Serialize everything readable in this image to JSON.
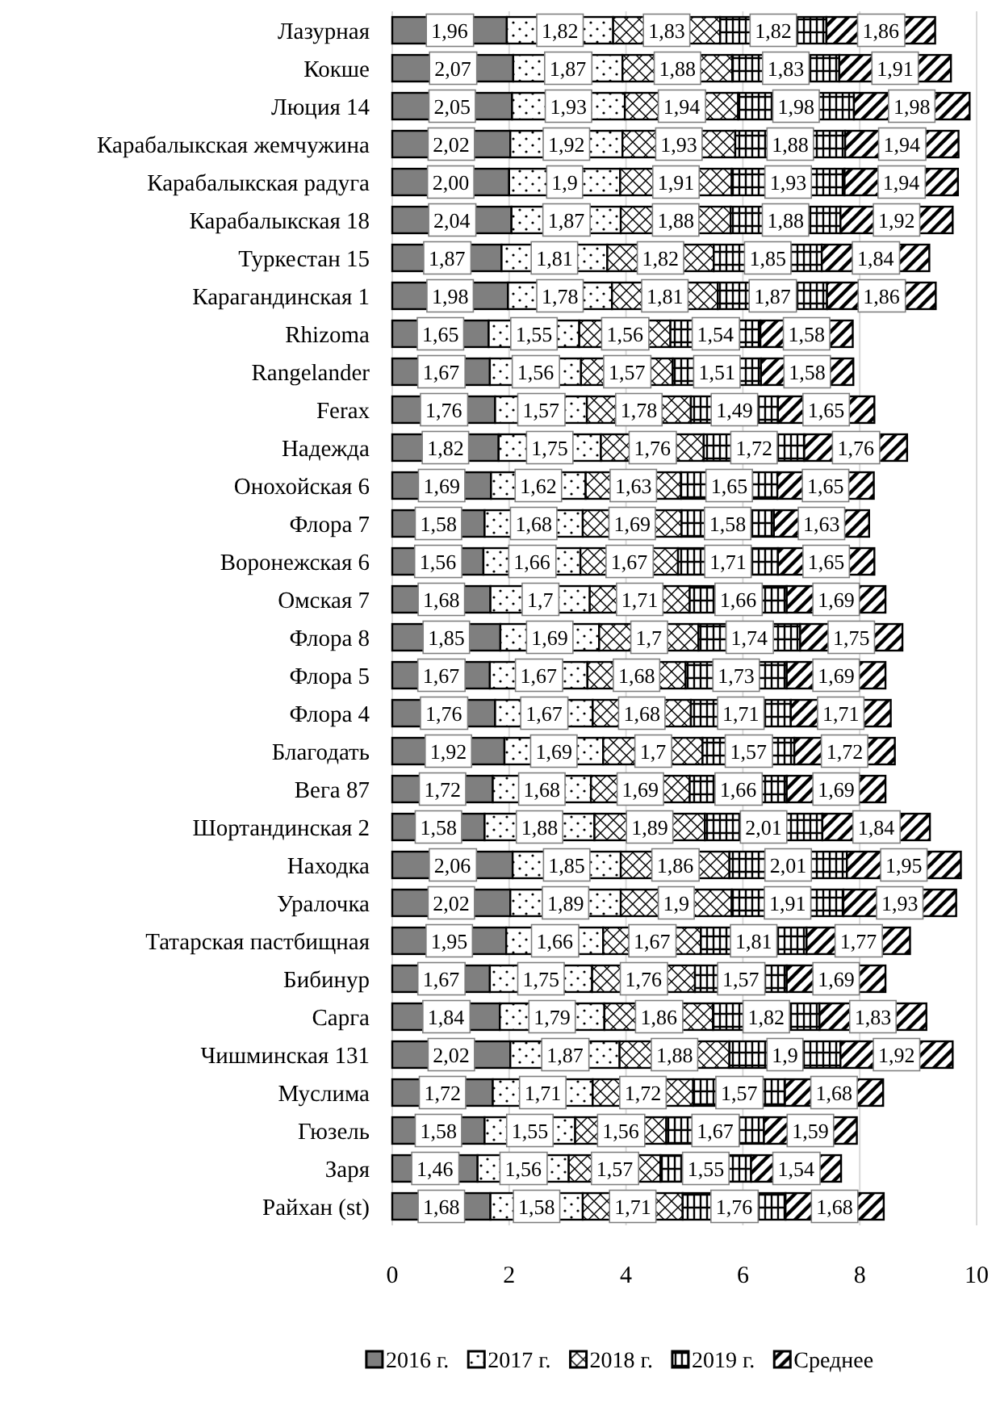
{
  "chart_data": {
    "type": "bar",
    "orientation": "horizontal",
    "stacked": true,
    "grid": "x",
    "legend": "bottom",
    "categories": [
      "Лазурная",
      "Кокше",
      "Люция 14",
      "Карабалыкская жемчужина",
      "Карабалыкская радуга",
      "Карабалыкская 18",
      "Туркестан 15",
      "Карагандинская 1",
      "Rhizoma",
      "Rangelander",
      "Ferax",
      "Надежда",
      "Онохойская 6",
      "Флора 7",
      "Воронежская 6",
      "Омская 7",
      "Флора 8",
      "Флора 5",
      "Флора 4",
      "Благодать",
      "Вега 87",
      "Шортандинская 2",
      "Находка",
      "Уралочка",
      "Татарская пастбищная",
      "Бибинур",
      "Сарга",
      "Чишминская 131",
      "Муслима",
      "Гюзель",
      "Заря",
      "Райхан (st)"
    ],
    "xlim": [
      0,
      10
    ],
    "xticks": [
      0,
      2,
      4,
      6,
      8,
      10
    ],
    "series": [
      {
        "name": "2016 г.",
        "color": "#7f7f7f",
        "values": [
          1.96,
          2.07,
          2.05,
          2.02,
          2.0,
          2.04,
          1.87,
          1.98,
          1.65,
          1.67,
          1.76,
          1.82,
          1.69,
          1.58,
          1.56,
          1.68,
          1.85,
          1.67,
          1.76,
          1.92,
          1.72,
          1.58,
          2.06,
          2.02,
          1.95,
          1.67,
          1.84,
          2.02,
          1.72,
          1.58,
          1.46,
          1.68
        ],
        "value_labels": [
          "1,96",
          "2,07",
          "2,05",
          "2,02",
          "2,00",
          "2,04",
          "1,87",
          "1,98",
          "1,65",
          "1,67",
          "1,76",
          "1,82",
          "1,69",
          "1,58",
          "1,56",
          "1,68",
          "1,85",
          "1,67",
          "1,76",
          "1,92",
          "1,72",
          "1,58",
          "2,06",
          "2,02",
          "1,95",
          "1,67",
          "1,84",
          "2,02",
          "1,72",
          "1,58",
          "1,46",
          "1,68"
        ]
      },
      {
        "name": "2017 г.",
        "color": "#000000",
        "values": [
          1.82,
          1.87,
          1.93,
          1.92,
          1.9,
          1.87,
          1.81,
          1.78,
          1.55,
          1.56,
          1.57,
          1.75,
          1.62,
          1.68,
          1.66,
          1.7,
          1.69,
          1.67,
          1.67,
          1.69,
          1.68,
          1.88,
          1.85,
          1.89,
          1.66,
          1.75,
          1.79,
          1.87,
          1.71,
          1.55,
          1.56,
          1.58
        ],
        "value_labels": [
          "1,82",
          "1,87",
          "1,93",
          "1,92",
          "1,9",
          "1,87",
          "1,81",
          "1,78",
          "1,55",
          "1,56",
          "1,57",
          "1,75",
          "1,62",
          "1,68",
          "1,66",
          "1,7",
          "1,69",
          "1,67",
          "1,67",
          "1,69",
          "1,68",
          "1,88",
          "1,85",
          "1,89",
          "1,66",
          "1,75",
          "1,79",
          "1,87",
          "1,71",
          "1,55",
          "1,56",
          "1,58"
        ]
      },
      {
        "name": "2018 г.",
        "color": "#000000",
        "values": [
          1.83,
          1.88,
          1.94,
          1.93,
          1.91,
          1.88,
          1.82,
          1.81,
          1.56,
          1.57,
          1.78,
          1.76,
          1.63,
          1.69,
          1.67,
          1.71,
          1.7,
          1.68,
          1.68,
          1.7,
          1.69,
          1.89,
          1.86,
          1.9,
          1.67,
          1.76,
          1.86,
          1.88,
          1.72,
          1.56,
          1.57,
          1.71
        ],
        "value_labels": [
          "1,83",
          "1,88",
          "1,94",
          "1,93",
          "1,91",
          "1,88",
          "1,82",
          "1,81",
          "1,56",
          "1,57",
          "1,78",
          "1,76",
          "1,63",
          "1,69",
          "1,67",
          "1,71",
          "1,7",
          "1,68",
          "1,68",
          "1,7",
          "1,69",
          "1,89",
          "1,86",
          "1,9",
          "1,67",
          "1,76",
          "1,86",
          "1,88",
          "1,72",
          "1,56",
          "1,57",
          "1,71"
        ]
      },
      {
        "name": "2019 г.",
        "color": "#000000",
        "values": [
          1.82,
          1.83,
          1.98,
          1.88,
          1.93,
          1.88,
          1.85,
          1.87,
          1.54,
          1.51,
          1.49,
          1.72,
          1.65,
          1.58,
          1.71,
          1.66,
          1.74,
          1.73,
          1.71,
          1.57,
          1.66,
          2.01,
          2.01,
          1.91,
          1.81,
          1.57,
          1.82,
          1.9,
          1.57,
          1.67,
          1.55,
          1.76
        ],
        "value_labels": [
          "1,82",
          "1,83",
          "1,98",
          "1,88",
          "1,93",
          "1,88",
          "1,85",
          "1,87",
          "1,54",
          "1,51",
          "1,49",
          "1,72",
          "1,65",
          "1,58",
          "1,71",
          "1,66",
          "1,74",
          "1,73",
          "1,71",
          "1,57",
          "1,66",
          "2,01",
          "2,01",
          "1,91",
          "1,81",
          "1,57",
          "1,82",
          "1,9",
          "1,57",
          "1,67",
          "1,55",
          "1,76"
        ]
      },
      {
        "name": "Среднее",
        "color": "#000000",
        "values": [
          1.86,
          1.91,
          1.98,
          1.94,
          1.94,
          1.92,
          1.84,
          1.86,
          1.58,
          1.58,
          1.65,
          1.76,
          1.65,
          1.63,
          1.65,
          1.69,
          1.75,
          1.69,
          1.71,
          1.72,
          1.69,
          1.84,
          1.95,
          1.93,
          1.77,
          1.69,
          1.83,
          1.92,
          1.68,
          1.59,
          1.54,
          1.68
        ],
        "value_labels": [
          "1,86",
          "1,91",
          "1,98",
          "1,94",
          "1,94",
          "1,92",
          "1,84",
          "1,86",
          "1,58",
          "1,58",
          "1,65",
          "1,76",
          "1,65",
          "1,63",
          "1,65",
          "1,69",
          "1,75",
          "1,69",
          "1,71",
          "1,72",
          "1,69",
          "1,84",
          "1,95",
          "1,93",
          "1,77",
          "1,69",
          "1,83",
          "1,92",
          "1,68",
          "1,59",
          "1,54",
          "1,68"
        ]
      }
    ]
  }
}
